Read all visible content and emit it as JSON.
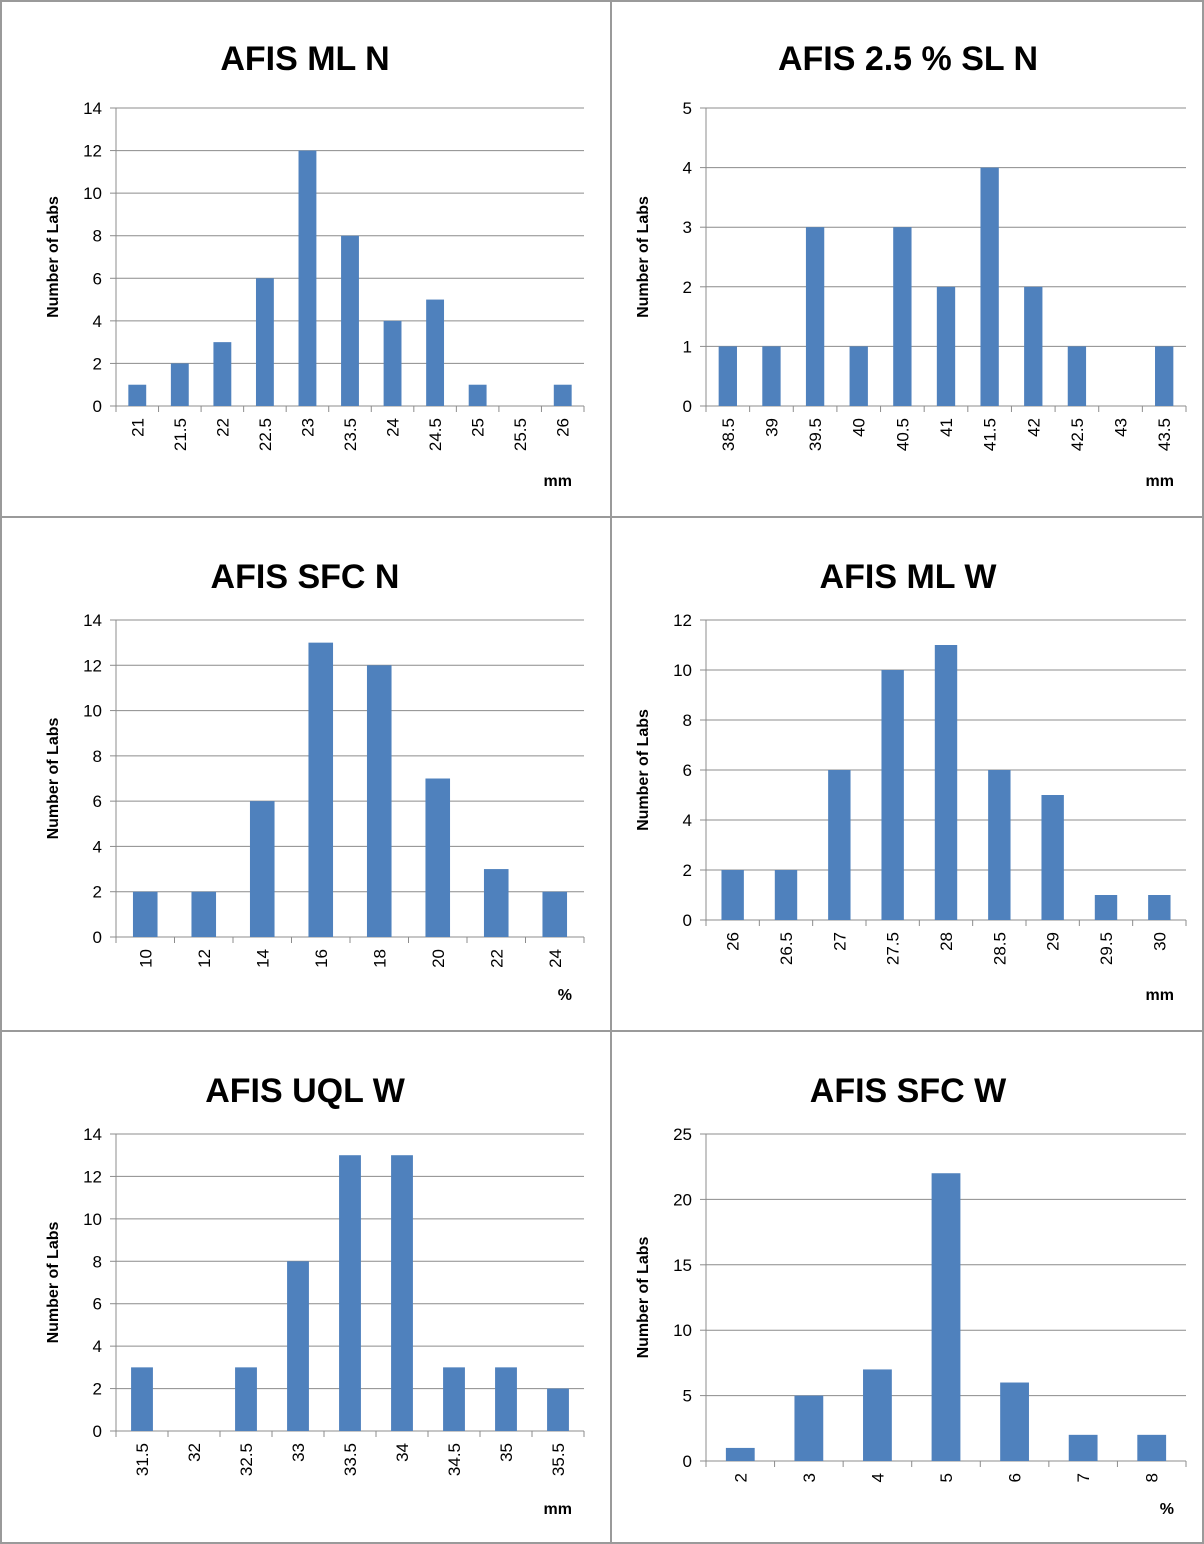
{
  "colors": {
    "bar": "#4f81bd",
    "grid": "#8c8c8c",
    "axis": "#8c8c8c",
    "text": "#000000"
  },
  "chart_data": [
    {
      "type": "bar",
      "title": "AFIS ML N",
      "ylabel": "Number of Labs",
      "xlabel": "mm",
      "categories": [
        "21",
        "21.5",
        "22",
        "22.5",
        "23",
        "23.5",
        "24",
        "24.5",
        "25",
        "25.5",
        "26"
      ],
      "values": [
        1,
        2,
        3,
        6,
        12,
        8,
        4,
        5,
        1,
        0,
        1
      ],
      "ylim": [
        0,
        14
      ],
      "yticks": [
        0,
        2,
        4,
        6,
        8,
        10,
        12,
        14
      ],
      "rotate_labels": true,
      "grid": true
    },
    {
      "type": "bar",
      "title": "AFIS 2.5 % SL N",
      "ylabel": "Number of Labs",
      "xlabel": "mm",
      "categories": [
        "38.5",
        "39",
        "39.5",
        "40",
        "40.5",
        "41",
        "41.5",
        "42",
        "42.5",
        "43",
        "43.5"
      ],
      "values": [
        1,
        1,
        3,
        1,
        3,
        2,
        4,
        2,
        1,
        0,
        1
      ],
      "ylim": [
        0,
        5
      ],
      "yticks": [
        0,
        1,
        2,
        3,
        4,
        5
      ],
      "rotate_labels": true,
      "grid": true
    },
    {
      "type": "bar",
      "title": "AFIS SFC N",
      "ylabel": "Number of Labs",
      "xlabel": "%",
      "categories": [
        "10",
        "12",
        "14",
        "16",
        "18",
        "20",
        "22",
        "24"
      ],
      "values": [
        2,
        2,
        6,
        13,
        12,
        7,
        3,
        2
      ],
      "ylim": [
        0,
        14
      ],
      "yticks": [
        0,
        2,
        4,
        6,
        8,
        10,
        12,
        14
      ],
      "rotate_labels": true,
      "grid": true
    },
    {
      "type": "bar",
      "title": "AFIS ML W",
      "ylabel": "Number of Labs",
      "xlabel": "mm",
      "categories": [
        "26",
        "26.5",
        "27",
        "27.5",
        "28",
        "28.5",
        "29",
        "29.5",
        "30"
      ],
      "values": [
        2,
        2,
        6,
        10,
        11,
        6,
        5,
        1,
        1
      ],
      "ylim": [
        0,
        12
      ],
      "yticks": [
        0,
        2,
        4,
        6,
        8,
        10,
        12
      ],
      "rotate_labels": true,
      "grid": true
    },
    {
      "type": "bar",
      "title": "AFIS UQL W",
      "ylabel": "Number of Labs",
      "xlabel": "mm",
      "categories": [
        "31.5",
        "32",
        "32.5",
        "33",
        "33.5",
        "34",
        "34.5",
        "35",
        "35.5"
      ],
      "values": [
        3,
        0,
        3,
        8,
        13,
        13,
        3,
        3,
        2
      ],
      "ylim": [
        0,
        14
      ],
      "yticks": [
        0,
        2,
        4,
        6,
        8,
        10,
        12,
        14
      ],
      "rotate_labels": true,
      "grid": true
    },
    {
      "type": "bar",
      "title": "AFIS SFC W",
      "ylabel": "Number of Labs",
      "xlabel": "%",
      "categories": [
        "2",
        "3",
        "4",
        "5",
        "6",
        "7",
        "8"
      ],
      "values": [
        1,
        5,
        7,
        22,
        6,
        2,
        2
      ],
      "ylim": [
        0,
        25
      ],
      "yticks": [
        0,
        5,
        10,
        15,
        20,
        25
      ],
      "rotate_labels": true,
      "grid": true
    }
  ]
}
